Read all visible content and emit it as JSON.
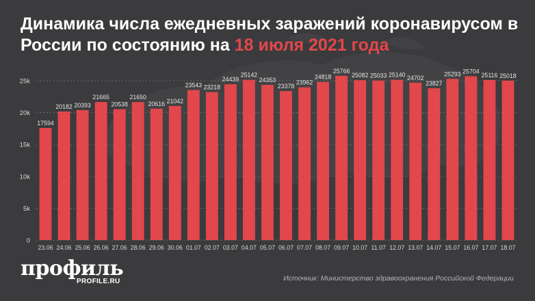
{
  "header": {
    "title_main": "Динамика числа ежедневных заражений коронавирусом в России по состоянию на ",
    "title_accent": "18 июля 2021 года"
  },
  "logo": {
    "name": "профиль",
    "site": "PROFILE.RU"
  },
  "source": "Источник: Министерство здравоохранения Российской Федерации",
  "colors": {
    "background": "#3b3b3d",
    "bar": "#e2474b",
    "accent": "#e2474b",
    "text": "#ffffff"
  },
  "chart_data": {
    "type": "bar",
    "title": "Динамика числа ежедневных заражений коронавирусом в России по состоянию на 18 июля 2021 года",
    "xlabel": "",
    "ylabel": "",
    "ylim": [
      0,
      25000
    ],
    "yticks": [
      0,
      5000,
      10000,
      15000,
      20000,
      25000
    ],
    "ytick_labels": [
      "0",
      "5k",
      "10k",
      "15k",
      "20k",
      "25k"
    ],
    "grid": "horizontal",
    "categories": [
      "23.06",
      "24.06",
      "25.06",
      "26.06",
      "27.06",
      "28.06",
      "29.06",
      "30.06",
      "01.07",
      "02.07",
      "03.07",
      "04.07",
      "05.07",
      "06.07",
      "07.07",
      "08.07",
      "09.07",
      "10.07",
      "11.07",
      "12.07",
      "13.07",
      "14.07",
      "15.07",
      "16.07",
      "17.07",
      "18.07"
    ],
    "values": [
      17594,
      20182,
      20393,
      21665,
      20538,
      21650,
      20616,
      21042,
      23543,
      23218,
      24439,
      25142,
      24353,
      23378,
      23962,
      24818,
      25766,
      25082,
      25033,
      25140,
      24702,
      23827,
      25293,
      25704,
      25116,
      25018
    ]
  }
}
